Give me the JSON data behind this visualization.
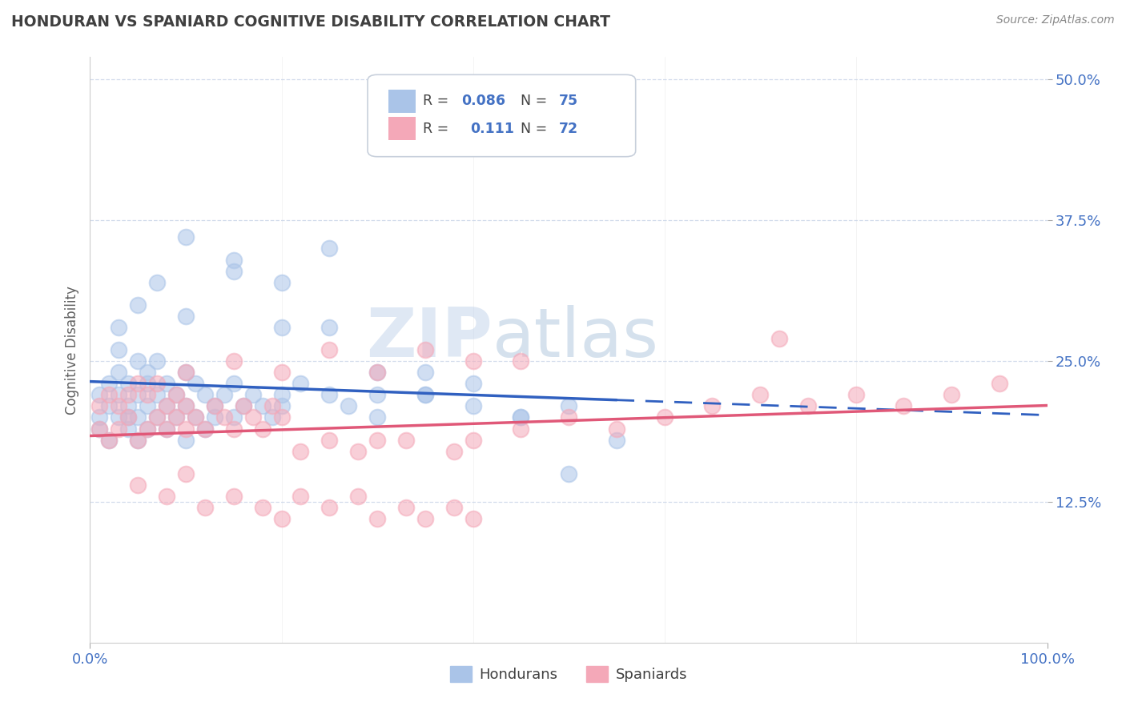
{
  "title": "HONDURAN VS SPANIARD COGNITIVE DISABILITY CORRELATION CHART",
  "source_text": "Source: ZipAtlas.com",
  "ylabel": "Cognitive Disability",
  "xlim": [
    0,
    100
  ],
  "ylim": [
    0,
    52
  ],
  "ytick_values": [
    12.5,
    25.0,
    37.5,
    50.0
  ],
  "xtick_values": [
    0,
    100
  ],
  "honduran_color": "#aac4e8",
  "spaniard_color": "#f4a8b8",
  "honduran_line_color": "#3060c0",
  "spaniard_line_color": "#e05878",
  "background_color": "#ffffff",
  "grid_color": "#c8d4e8",
  "title_color": "#404040",
  "axis_label_color": "#606060",
  "tick_color": "#4472c4",
  "legend_value_color": "#4472c4",
  "watermark_zip": "ZIP",
  "watermark_atlas": "atlas",
  "honduran_N": 75,
  "spaniard_N": 72,
  "honduran_R": "0.086",
  "spaniard_R": "0.111",
  "honduran_points_x": [
    1,
    1,
    1,
    2,
    2,
    2,
    3,
    3,
    3,
    3,
    4,
    4,
    4,
    4,
    5,
    5,
    5,
    5,
    6,
    6,
    6,
    6,
    7,
    7,
    7,
    8,
    8,
    8,
    9,
    9,
    10,
    10,
    10,
    11,
    11,
    12,
    12,
    13,
    13,
    14,
    15,
    15,
    16,
    17,
    18,
    19,
    20,
    20,
    22,
    25,
    27,
    30,
    35,
    40,
    45,
    50,
    3,
    5,
    7,
    10,
    15,
    20,
    25,
    30,
    35,
    10,
    15,
    20,
    25,
    30,
    35,
    40,
    45,
    50,
    55
  ],
  "honduran_points_y": [
    20,
    22,
    19,
    21,
    18,
    23,
    20,
    24,
    22,
    26,
    21,
    19,
    23,
    20,
    18,
    22,
    25,
    20,
    19,
    23,
    21,
    24,
    22,
    20,
    25,
    21,
    23,
    19,
    22,
    20,
    21,
    18,
    24,
    20,
    23,
    22,
    19,
    21,
    20,
    22,
    23,
    20,
    21,
    22,
    21,
    20,
    22,
    21,
    23,
    22,
    21,
    20,
    22,
    21,
    20,
    21,
    28,
    30,
    32,
    29,
    33,
    28,
    28,
    22,
    24,
    36,
    34,
    32,
    35,
    24,
    22,
    23,
    20,
    15,
    18
  ],
  "spaniard_points_x": [
    1,
    1,
    2,
    2,
    3,
    3,
    4,
    4,
    5,
    5,
    6,
    6,
    7,
    7,
    8,
    8,
    9,
    9,
    10,
    10,
    11,
    12,
    13,
    14,
    15,
    16,
    17,
    18,
    19,
    20,
    22,
    25,
    28,
    30,
    33,
    38,
    40,
    45,
    50,
    55,
    60,
    65,
    70,
    75,
    80,
    85,
    90,
    95,
    5,
    8,
    10,
    12,
    15,
    18,
    20,
    22,
    25,
    28,
    30,
    33,
    35,
    38,
    40,
    10,
    15,
    20,
    25,
    30,
    35,
    40,
    45,
    72
  ],
  "spaniard_points_y": [
    19,
    21,
    18,
    22,
    19,
    21,
    20,
    22,
    18,
    23,
    19,
    22,
    20,
    23,
    19,
    21,
    20,
    22,
    19,
    21,
    20,
    19,
    21,
    20,
    19,
    21,
    20,
    19,
    21,
    20,
    17,
    18,
    17,
    18,
    18,
    17,
    18,
    19,
    20,
    19,
    20,
    21,
    22,
    21,
    22,
    21,
    22,
    23,
    14,
    13,
    15,
    12,
    13,
    12,
    11,
    13,
    12,
    13,
    11,
    12,
    11,
    12,
    11,
    24,
    25,
    24,
    26,
    24,
    26,
    25,
    25,
    27
  ]
}
